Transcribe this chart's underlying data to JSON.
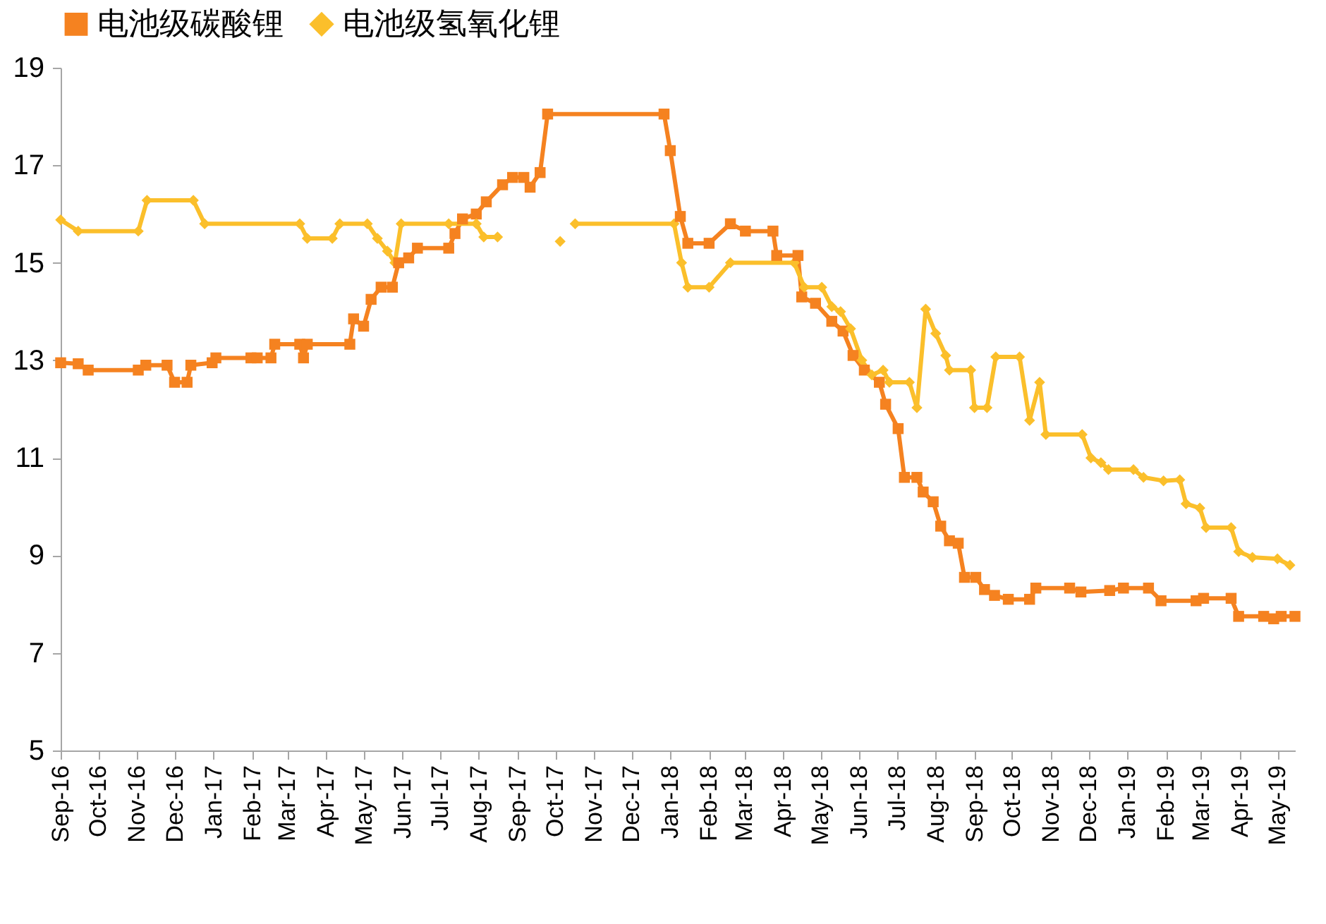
{
  "chart_data": {
    "type": "line",
    "legend": "top",
    "grid": false,
    "line_style": "solid",
    "xlim": [
      "2016-09-01",
      "2019-05-15"
    ],
    "xticks": [
      {
        "value": "2016-09",
        "label": "Sep-16"
      },
      {
        "value": "2016-10",
        "label": "Oct-16"
      },
      {
        "value": "2016-11",
        "label": "Nov-16"
      },
      {
        "value": "2016-12",
        "label": "Dec-16"
      },
      {
        "value": "2017-01",
        "label": "Jan-17"
      },
      {
        "value": "2017-02",
        "label": "Feb-17"
      },
      {
        "value": "2017-03",
        "label": "Mar-17"
      },
      {
        "value": "2017-04",
        "label": "Apr-17"
      },
      {
        "value": "2017-05",
        "label": "May-17"
      },
      {
        "value": "2017-06",
        "label": "Jun-17"
      },
      {
        "value": "2017-07",
        "label": "Jul-17"
      },
      {
        "value": "2017-08",
        "label": "Aug-17"
      },
      {
        "value": "2017-09",
        "label": "Sep-17"
      },
      {
        "value": "2017-10",
        "label": "Oct-17"
      },
      {
        "value": "2017-11",
        "label": "Nov-17"
      },
      {
        "value": "2017-12",
        "label": "Dec-17"
      },
      {
        "value": "2018-01",
        "label": "Jan-18"
      },
      {
        "value": "2018-02",
        "label": "Feb-18"
      },
      {
        "value": "2018-03",
        "label": "Mar-18"
      },
      {
        "value": "2018-04",
        "label": "Apr-18"
      },
      {
        "value": "2018-05",
        "label": "May-18"
      },
      {
        "value": "2018-06",
        "label": "Jun-18"
      },
      {
        "value": "2018-07",
        "label": "Jul-18"
      },
      {
        "value": "2018-08",
        "label": "Aug-18"
      },
      {
        "value": "2018-09",
        "label": "Sep-18"
      },
      {
        "value": "2018-10",
        "label": "Oct-18"
      },
      {
        "value": "2018-11",
        "label": "Nov-18"
      },
      {
        "value": "2018-12",
        "label": "Dec-18"
      },
      {
        "value": "2019-01",
        "label": "Jan-19"
      },
      {
        "value": "2019-02",
        "label": "Feb-19"
      },
      {
        "value": "2019-03",
        "label": "Mar-19"
      },
      {
        "value": "2019-04",
        "label": "Apr-19"
      },
      {
        "value": "2019-05",
        "label": "May-19"
      }
    ],
    "ylim": [
      5,
      19
    ],
    "yticks": [
      5,
      7,
      9,
      11,
      13,
      15,
      17,
      19
    ],
    "series": [
      {
        "name": "电池级碳酸锂",
        "color": "#f58220",
        "marker": "square",
        "x": [
          "2016-09-01",
          "2016-09-15",
          "2016-09-23",
          "2016-11-02",
          "2016-11-08",
          "2016-11-25",
          "2016-12-01",
          "2016-12-11",
          "2016-12-14",
          "2016-12-31",
          "2017-01-03",
          "2017-01-31",
          "2017-02-05",
          "2017-02-16",
          "2017-02-19",
          "2017-03-11",
          "2017-03-14",
          "2017-03-17",
          "2017-04-20",
          "2017-04-23",
          "2017-05-01",
          "2017-05-07",
          "2017-05-15",
          "2017-05-24",
          "2017-05-29",
          "2017-06-06",
          "2017-06-13",
          "2017-07-08",
          "2017-07-13",
          "2017-07-19",
          "2017-07-30",
          "2017-08-07",
          "2017-08-20",
          "2017-08-28",
          "2017-09-06",
          "2017-09-11",
          "2017-09-19",
          "2017-09-25",
          "2017-12-27",
          "2018-01-01",
          "2018-01-09",
          "2018-01-15",
          "2018-02-01",
          "2018-02-18",
          "2018-03-02",
          "2018-03-24",
          "2018-03-27",
          "2018-04-13",
          "2018-04-16",
          "2018-04-27",
          "2018-05-10",
          "2018-05-19",
          "2018-05-27",
          "2018-06-05",
          "2018-06-17",
          "2018-06-22",
          "2018-07-02",
          "2018-07-07",
          "2018-07-17",
          "2018-07-22",
          "2018-07-30",
          "2018-08-05",
          "2018-08-12",
          "2018-08-19",
          "2018-08-24",
          "2018-09-02",
          "2018-09-09",
          "2018-09-17",
          "2018-09-28",
          "2018-10-15",
          "2018-10-20",
          "2018-11-16",
          "2018-11-25",
          "2018-12-18",
          "2018-12-29",
          "2019-01-18",
          "2019-01-28",
          "2019-02-25",
          "2019-03-03",
          "2019-03-25",
          "2019-03-31",
          "2019-04-20",
          "2019-04-28",
          "2019-05-04",
          "2019-05-15"
        ],
        "values": [
          12.95,
          12.93,
          12.8,
          12.8,
          12.9,
          12.9,
          12.55,
          12.55,
          12.9,
          12.95,
          13.05,
          13.05,
          13.05,
          13.05,
          13.33,
          13.33,
          13.05,
          13.33,
          13.33,
          13.85,
          13.7,
          14.25,
          14.5,
          14.5,
          15.0,
          15.1,
          15.3,
          15.3,
          15.6,
          15.9,
          16.0,
          16.25,
          16.6,
          16.75,
          16.75,
          16.55,
          16.85,
          18.05,
          18.05,
          17.3,
          15.95,
          15.4,
          15.4,
          15.8,
          15.65,
          15.65,
          15.15,
          15.15,
          14.3,
          14.17,
          13.8,
          13.6,
          13.1,
          12.8,
          12.55,
          12.1,
          11.6,
          10.6,
          10.6,
          10.3,
          10.1,
          9.6,
          9.3,
          9.25,
          8.55,
          8.55,
          8.3,
          8.18,
          8.1,
          8.1,
          8.33,
          8.33,
          8.25,
          8.28,
          8.33,
          8.33,
          8.07,
          8.07,
          8.12,
          8.12,
          7.75,
          7.75,
          7.7,
          7.75,
          7.75
        ]
      },
      {
        "name": "电池级氢氧化锂",
        "color": "#fbbf2b",
        "marker": "diamond",
        "x": [
          "2016-09-01",
          "2016-09-15",
          "2016-11-02",
          "2016-11-09",
          "2016-12-16",
          "2016-12-25",
          "2017-03-11",
          "2017-03-17",
          "2017-04-06",
          "2017-04-12",
          "2017-05-04",
          "2017-05-12",
          "2017-05-20",
          "2017-05-26",
          "2017-05-31",
          "2017-07-08",
          "2017-07-30",
          "2017-08-05",
          "2017-08-16",
          "2017-09-10",
          "2017-10-05",
          "2017-10-10",
          "2017-10-17",
          "2018-01-04",
          "2018-01-10",
          "2018-01-15",
          "2018-02-01",
          "2018-02-18",
          "2018-04-10",
          "2018-04-18",
          "2018-05-02",
          "2018-05-10",
          "2018-05-17",
          "2018-05-25",
          "2018-06-03",
          "2018-06-11",
          "2018-06-20",
          "2018-06-25",
          "2018-07-11",
          "2018-07-17",
          "2018-07-24",
          "2018-08-01",
          "2018-08-09",
          "2018-08-12",
          "2018-08-29",
          "2018-09-01",
          "2018-09-11",
          "2018-09-18",
          "2018-10-07",
          "2018-10-15",
          "2018-10-23",
          "2018-10-28",
          "2018-11-26",
          "2018-12-03",
          "2018-12-11",
          "2018-12-17",
          "2019-01-06",
          "2019-01-14",
          "2019-01-30",
          "2019-02-12",
          "2019-02-17",
          "2019-02-28",
          "2019-03-05",
          "2019-03-25",
          "2019-03-31",
          "2019-04-11",
          "2019-05-01",
          "2019-05-11"
        ],
        "values": [
          15.88,
          15.65,
          15.65,
          16.28,
          16.28,
          15.8,
          15.8,
          15.5,
          15.5,
          15.8,
          15.8,
          15.5,
          15.24,
          15.0,
          15.8,
          15.8,
          15.8,
          15.53,
          15.53,
          null,
          15.44,
          null,
          15.8,
          15.8,
          15.0,
          14.5,
          14.5,
          15.0,
          15.0,
          14.5,
          14.5,
          14.1,
          14.0,
          13.65,
          13.0,
          12.7,
          12.8,
          12.55,
          12.55,
          12.03,
          14.05,
          13.55,
          13.1,
          12.8,
          12.8,
          12.03,
          12.03,
          13.07,
          13.07,
          11.77,
          12.55,
          11.48,
          11.48,
          11.0,
          10.9,
          10.76,
          10.76,
          10.6,
          10.53,
          10.55,
          10.06,
          9.97,
          9.57,
          9.57,
          9.08,
          8.96,
          8.93,
          8.8
        ]
      }
    ]
  }
}
